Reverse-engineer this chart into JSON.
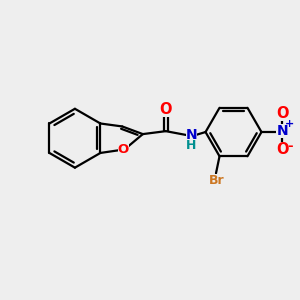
{
  "bg_color": "#eeeeee",
  "bond_color": "#000000",
  "bond_width": 1.6,
  "atom_colors": {
    "O": "#ff0000",
    "N": "#0000cd",
    "Br": "#cc7722",
    "H": "#009090",
    "C": "#000000"
  },
  "font_size": 8.5,
  "figsize": [
    3.0,
    3.0
  ],
  "dpi": 100
}
